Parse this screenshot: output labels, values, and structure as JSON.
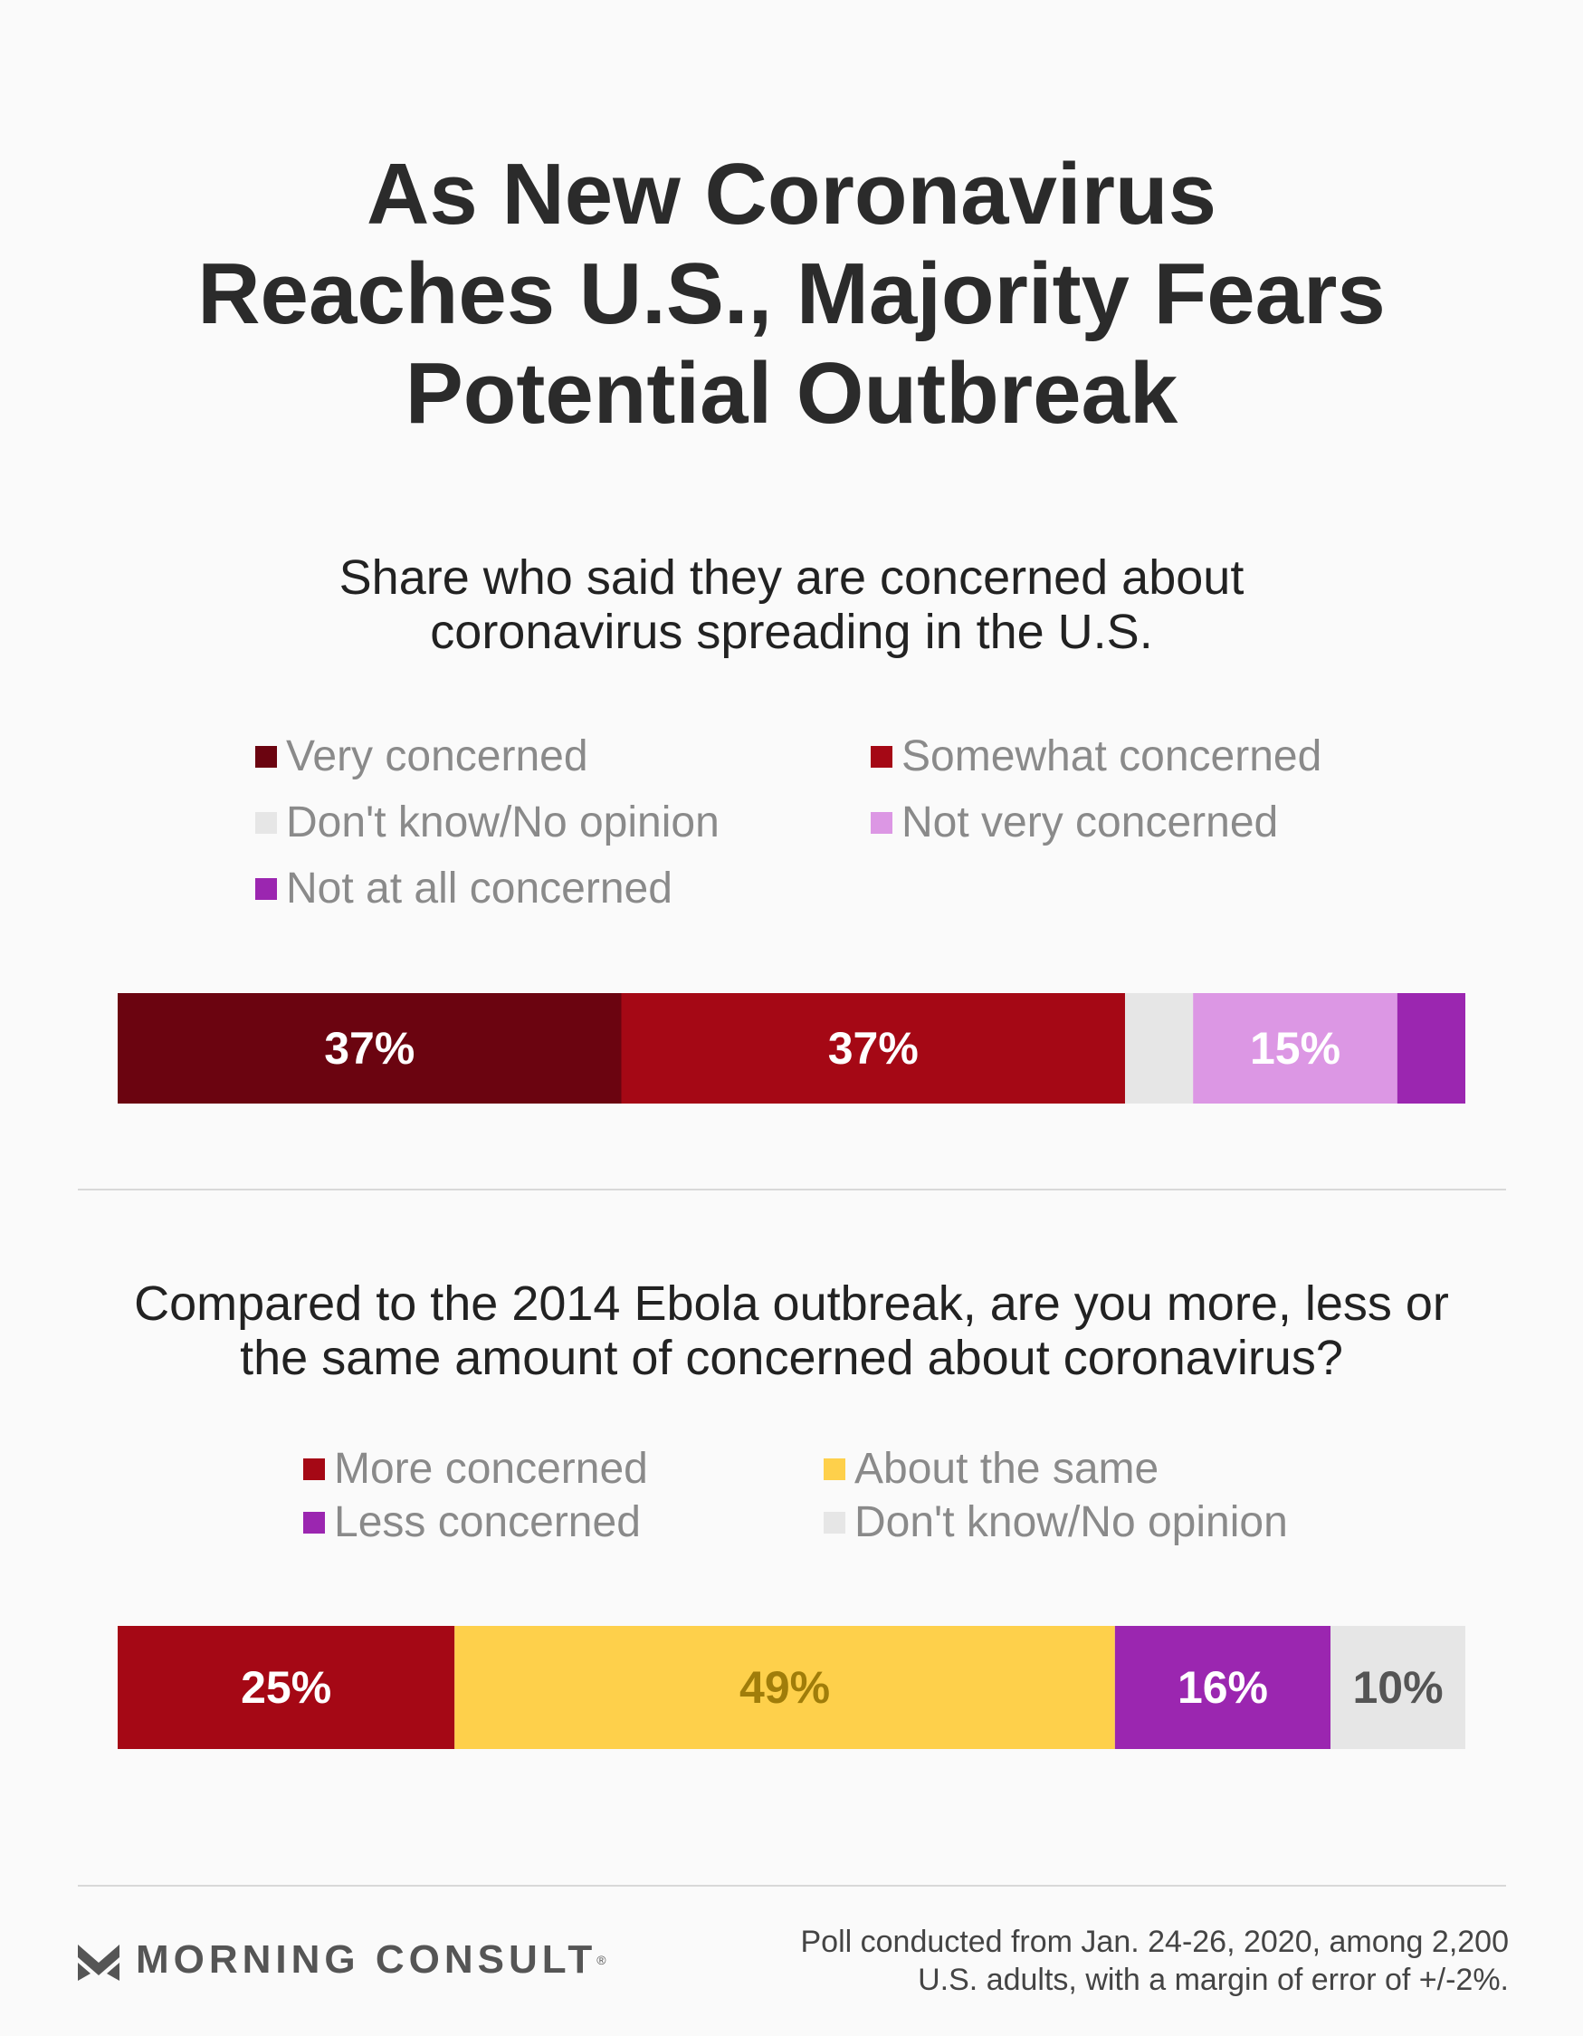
{
  "title": {
    "line1": "As New Coronavirus",
    "line2": "Reaches U.S., Majority Fears",
    "line3": "Potential Outbreak"
  },
  "chart_data": [
    {
      "type": "bar",
      "subtype": "stacked-100",
      "title_line1": "Share who said they are concerned about",
      "title_line2": "coronavirus spreading in the U.S.",
      "unit": "%",
      "segments": [
        {
          "name": "Very concerned",
          "value": 37,
          "label": "37%",
          "color": "#6b0410",
          "text_color": "#ffffff"
        },
        {
          "name": "Somewhat concerned",
          "value": 37,
          "label": "37%",
          "color": "#a50815",
          "text_color": "#ffffff"
        },
        {
          "name": "Don't know/No opinion",
          "value": 5,
          "label": "",
          "color": "#e6e6e6",
          "text_color": "#555555"
        },
        {
          "name": "Not very concerned",
          "value": 15,
          "label": "15%",
          "color": "#dc97e4",
          "text_color": "#ffffff"
        },
        {
          "name": "Not at all concerned",
          "value": 5,
          "label": "",
          "color": "#9b26b0",
          "text_color": "#ffffff"
        }
      ],
      "legend": [
        {
          "label": "Very concerned",
          "color": "#6b0410"
        },
        {
          "label": "Somewhat concerned",
          "color": "#a50815"
        },
        {
          "label": "Don't know/No opinion",
          "color": "#e6e6e6"
        },
        {
          "label": "Not very concerned",
          "color": "#dc97e4"
        },
        {
          "label": "Not at all concerned",
          "color": "#9b26b0"
        }
      ]
    },
    {
      "type": "bar",
      "subtype": "stacked-100",
      "title_line1": "Compared to the 2014 Ebola outbreak, are you more, less or",
      "title_line2": "the same amount of concerned about coronavirus?",
      "unit": "%",
      "segments": [
        {
          "name": "More concerned",
          "value": 25,
          "label": "25%",
          "color": "#a50815",
          "text_color": "#ffffff"
        },
        {
          "name": "About the same",
          "value": 49,
          "label": "49%",
          "color": "#fed04b",
          "text_color": "#a07d0a"
        },
        {
          "name": "Less concerned",
          "value": 16,
          "label": "16%",
          "color": "#9b26b0",
          "text_color": "#ffffff"
        },
        {
          "name": "Don't know/No opinion",
          "value": 10,
          "label": "10%",
          "color": "#e6e6e6",
          "text_color": "#555555"
        }
      ],
      "legend": [
        {
          "label": "More concerned",
          "color": "#a50815"
        },
        {
          "label": "About the same",
          "color": "#fed04b"
        },
        {
          "label": "Less concerned",
          "color": "#9b26b0"
        },
        {
          "label": "Don't know/No opinion",
          "color": "#e6e6e6"
        }
      ]
    }
  ],
  "footer": {
    "brand": "MORNING CONSULT",
    "reg_mark": "®",
    "note_line1": "Poll conducted from Jan. 24-26, 2020, among 2,200",
    "note_line2": "U.S. adults, with a margin of error of +/-2%."
  }
}
